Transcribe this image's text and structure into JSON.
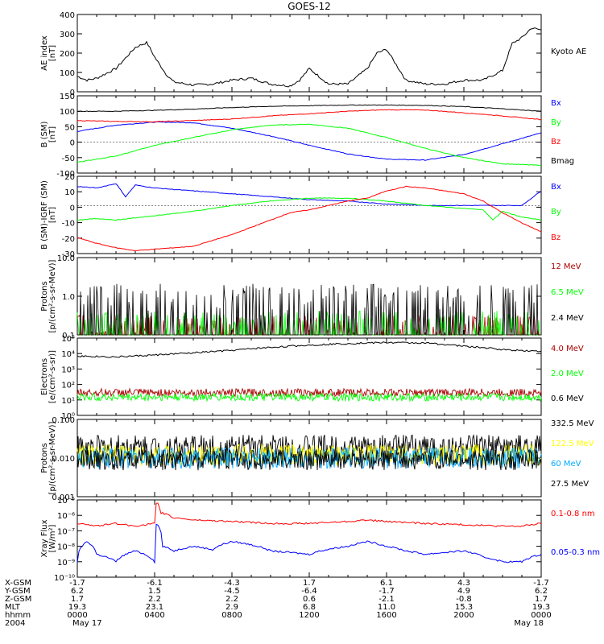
{
  "title": "GOES-12",
  "colors": {
    "black": "#000000",
    "blue": "#0000ff",
    "green": "#00ff00",
    "red": "#ff0000",
    "darkred": "#aa0000",
    "cyan": "#00aaff",
    "yellow": "#ffff00"
  },
  "chart_data": [
    {
      "type": "line",
      "id": "ae",
      "ylabel_lines": [
        "AE index",
        "[nT]"
      ],
      "yticks": [
        "400",
        "300",
        "200",
        "100",
        "0"
      ],
      "ylim": [
        0,
        400
      ],
      "series": [
        {
          "name": "Kyoto AE",
          "color": "#000000",
          "x": [
            0,
            0.5,
            1,
            2,
            3,
            3.6,
            4,
            4.6,
            5,
            6,
            7,
            8,
            9,
            10,
            11,
            11.5,
            12,
            13,
            14,
            15,
            15.5,
            16,
            17,
            18,
            19,
            20,
            21,
            22,
            22.5,
            23,
            23.5,
            24
          ],
          "y": [
            80,
            60,
            70,
            120,
            230,
            255,
            180,
            90,
            50,
            35,
            40,
            60,
            70,
            40,
            30,
            60,
            120,
            40,
            40,
            120,
            200,
            220,
            60,
            40,
            40,
            60,
            60,
            110,
            250,
            280,
            330,
            320
          ]
        }
      ]
    },
    {
      "type": "line",
      "id": "bsm",
      "ylabel_lines": [
        "B (SM)",
        "[nT]"
      ],
      "yticks": [
        "150",
        "100",
        "50",
        "0",
        "-50",
        "-100"
      ],
      "ylim": [
        -100,
        150
      ],
      "series": [
        {
          "name": "Bx",
          "color": "#0000ff",
          "x": [
            0,
            2,
            4,
            6,
            8,
            10,
            12,
            14,
            16,
            18,
            20,
            22,
            24
          ],
          "y": [
            35,
            55,
            65,
            63,
            45,
            20,
            -10,
            -38,
            -55,
            -58,
            -40,
            -5,
            30
          ]
        },
        {
          "name": "By",
          "color": "#00ff00",
          "x": [
            0,
            2,
            4,
            6,
            8,
            10,
            12,
            14,
            16,
            18,
            20,
            22,
            24
          ],
          "y": [
            -65,
            -45,
            -10,
            15,
            40,
            55,
            58,
            45,
            15,
            -20,
            -50,
            -70,
            -75
          ]
        },
        {
          "name": "Bz",
          "color": "#ff0000",
          "x": [
            0,
            2,
            4,
            6,
            8,
            10,
            12,
            14,
            16,
            18,
            20,
            22,
            24
          ],
          "y": [
            70,
            67,
            66,
            70,
            75,
            85,
            92,
            100,
            105,
            104,
            95,
            85,
            73
          ]
        },
        {
          "name": "Bmag",
          "color": "#000000",
          "x": [
            0,
            2,
            4,
            6,
            8,
            10,
            12,
            14,
            16,
            18,
            20,
            22,
            24
          ],
          "y": [
            100,
            100,
            103,
            107,
            112,
            116,
            118,
            120,
            120,
            119,
            115,
            108,
            100
          ]
        }
      ]
    },
    {
      "type": "line",
      "id": "bigrf",
      "ylabel_lines": [
        "B (SM)-IGRF (SM)",
        "[nT]"
      ],
      "yticks": [
        "20",
        "10",
        "0",
        "-10",
        "-20",
        "-30"
      ],
      "ylim": [
        -33,
        20
      ],
      "series": [
        {
          "name": "Bx",
          "color": "#0000ff",
          "x": [
            0,
            1,
            2,
            2.5,
            3,
            4,
            6,
            8,
            10,
            12,
            14,
            16,
            18,
            20,
            22,
            23,
            24
          ],
          "y": [
            13,
            12,
            15,
            6,
            14,
            12,
            10,
            8,
            6,
            4,
            3,
            1,
            0,
            0,
            0,
            0,
            10
          ]
        },
        {
          "name": "By",
          "color": "#00ff00",
          "x": [
            0,
            1,
            2,
            4,
            6,
            8,
            10,
            12,
            14,
            16,
            18,
            20,
            21,
            21.5,
            22,
            23,
            24
          ],
          "y": [
            -10,
            -9,
            -10,
            -7,
            -4,
            0,
            3,
            5,
            5,
            3,
            0,
            -2,
            -3,
            -10,
            -4,
            -8,
            -10
          ]
        },
        {
          "name": "Bz",
          "color": "#ff0000",
          "x": [
            0,
            1,
            2,
            3,
            4,
            6,
            8,
            10,
            11,
            12,
            13,
            14,
            15,
            16,
            17,
            18,
            19,
            20,
            21,
            22,
            23,
            24
          ],
          "y": [
            -22,
            -26,
            -29,
            -31,
            -30,
            -28,
            -20,
            -10,
            -5,
            -3,
            0,
            3,
            5,
            10,
            13,
            12,
            10,
            8,
            3,
            -5,
            -12,
            -18
          ]
        }
      ]
    },
    {
      "type": "line",
      "id": "protons_low",
      "log": true,
      "ylabel_lines": [
        "Protons",
        "[p/(cm²-s-sr-MeV)]"
      ],
      "yticks": [
        "10.0",
        "1.0",
        "0.1"
      ],
      "ylim": [
        0.1,
        10
      ],
      "series": [
        {
          "name": "12 MeV",
          "color": "#aa0000",
          "level": 0.11
        },
        {
          "name": "6.5 MeV",
          "color": "#00ff00",
          "level": 0.14
        },
        {
          "name": "2.4 MeV",
          "color": "#000000",
          "level": 0.3
        }
      ]
    },
    {
      "type": "line",
      "id": "electrons",
      "log": true,
      "ylabel_lines": [
        "Electrons",
        "[e/(cm²-s-sr)]"
      ],
      "yticks": [
        "10⁵",
        "10⁴",
        "10³",
        "10²",
        "10¹",
        "10⁰"
      ],
      "ylim": [
        1,
        100000
      ],
      "series": [
        {
          "name": "4.0 MeV",
          "color": "#aa0000",
          "level": 30
        },
        {
          "name": "2.0 MeV",
          "color": "#00ff00",
          "level": 15
        },
        {
          "name": "0.6 MeV",
          "color": "#000000",
          "x": [
            0,
            2,
            4,
            6,
            8,
            10,
            12,
            14,
            16,
            18,
            20,
            22,
            24
          ],
          "y": [
            7000,
            6000,
            8000,
            11000,
            16000,
            25000,
            35000,
            45000,
            52000,
            48000,
            30000,
            18000,
            14000
          ]
        }
      ]
    },
    {
      "type": "line",
      "id": "protons_high",
      "log": true,
      "ylabel_lines": [
        "Protons",
        "[p/(cm²-s-sr-MeV)]"
      ],
      "yticks": [
        "0.100",
        "0.010",
        "0.001"
      ],
      "ylim": [
        0.001,
        0.1
      ],
      "series": [
        {
          "name": "332.5 MeV",
          "color": "#000000",
          "level": 0.018
        },
        {
          "name": "122.5 MeV",
          "color": "#ffff00",
          "level": 0.012
        },
        {
          "name": "60 MeV",
          "color": "#00aaff",
          "level": 0.01
        },
        {
          "name": "27.5 MeV",
          "color": "#000000",
          "level": 0.009
        }
      ]
    },
    {
      "type": "line",
      "id": "xray",
      "log": true,
      "ylabel_lines": [
        "Xray Flux",
        "[W/m²]"
      ],
      "yticks": [
        "10⁻⁵",
        "10⁻⁶",
        "10⁻⁷",
        "10⁻⁸",
        "10⁻⁹",
        "10⁻¹⁰"
      ],
      "ylim": [
        1e-10,
        1e-05
      ],
      "series": [
        {
          "name": "0.1-0.8 nm",
          "color": "#ff0000",
          "x": [
            0,
            1,
            2,
            3,
            4,
            4.1,
            4.3,
            5,
            6,
            8,
            10,
            12,
            14,
            15,
            16,
            18,
            20,
            22,
            23,
            24
          ],
          "y": [
            3e-07,
            2e-07,
            3e-07,
            2e-07,
            3e-07,
            8e-06,
            1.5e-06,
            7e-07,
            5e-07,
            4e-07,
            3e-07,
            3e-07,
            4e-07,
            5e-07,
            4e-07,
            3e-07,
            2.5e-07,
            2e-07,
            2e-07,
            3e-07
          ]
        },
        {
          "name": "0.05-0.3 nm",
          "color": "#0000ff",
          "x": [
            0,
            0.5,
            1,
            2,
            3,
            4,
            4.1,
            4.4,
            5,
            6,
            7,
            8,
            10,
            12,
            14,
            15,
            16,
            17,
            18,
            20,
            21,
            22,
            23,
            24
          ],
          "y": [
            1e-09,
            2e-08,
            3e-09,
            1e-09,
            5e-09,
            1e-09,
            3e-07,
            1e-08,
            5e-09,
            1e-08,
            6e-09,
            2e-08,
            5e-09,
            3e-09,
            1e-08,
            2e-08,
            1e-08,
            5e-09,
            3e-09,
            5e-09,
            2e-09,
            1e-09,
            1e-09,
            3e-09
          ]
        }
      ]
    }
  ],
  "footer": {
    "row_labels": [
      "X-GSM",
      "Y-GSM",
      "Z-GSM",
      "MLT",
      "hhmm",
      "2004"
    ],
    "columns": [
      [
        "-1.7",
        "6.2",
        "1.7",
        "19.3",
        "0000",
        "May 17"
      ],
      [
        "-6.1",
        "1.5",
        "2.2",
        "23.1",
        "0400",
        ""
      ],
      [
        "-4.3",
        "-4.5",
        "2.2",
        "2.9",
        "0800",
        ""
      ],
      [
        "1.7",
        "-6.4",
        "0.6",
        "6.8",
        "1200",
        ""
      ],
      [
        "6.1",
        "-1.7",
        "-2.1",
        "11.0",
        "1600",
        ""
      ],
      [
        "4.3",
        "4.9",
        "-0.8",
        "15.3",
        "2000",
        ""
      ],
      [
        "-1.7",
        "6.2",
        "1.7",
        "19.3",
        "0000",
        "May 18"
      ]
    ]
  }
}
